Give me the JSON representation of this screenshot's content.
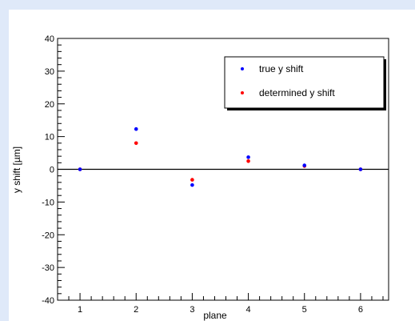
{
  "chart_data": {
    "type": "scatter",
    "title": "",
    "xlabel": "plane",
    "ylabel": "y shift [µm]",
    "xlim": [
      0.6,
      6.5
    ],
    "ylim": [
      -40,
      40
    ],
    "x_ticks": [
      "1",
      "2",
      "3",
      "4",
      "5",
      "6"
    ],
    "y_ticks": [
      "40",
      "30",
      "20",
      "10",
      "0",
      "-10",
      "-20",
      "-30",
      "-40"
    ],
    "zero_line": true,
    "grid": false,
    "legend_position": "top-right",
    "series": [
      {
        "name": "true y shift",
        "color": "#0000ff",
        "x": [
          1,
          2,
          3,
          4,
          5,
          6
        ],
        "y": [
          0,
          12.3,
          -4.8,
          3.7,
          1.2,
          0
        ]
      },
      {
        "name": "determined y shift",
        "color": "#ff0000",
        "x": [
          1,
          2,
          3,
          4,
          5,
          6
        ],
        "y": [
          0,
          8.0,
          -3.2,
          2.5,
          1.0,
          0
        ]
      }
    ]
  }
}
